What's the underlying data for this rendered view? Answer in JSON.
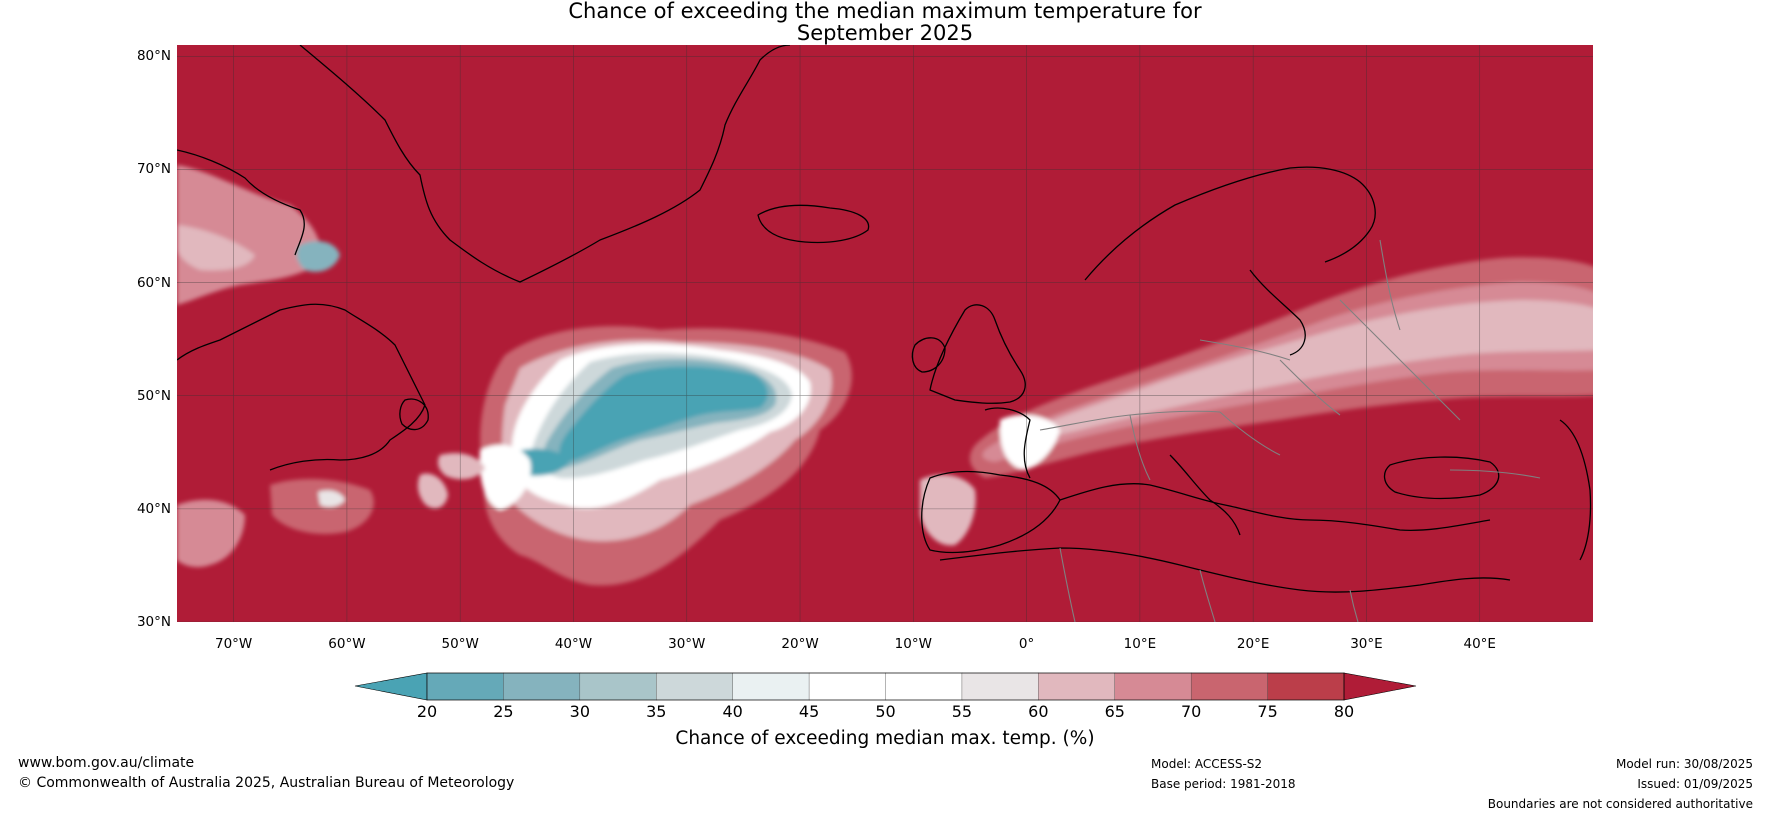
{
  "title": {
    "line1": "Chance of exceeding the median maximum temperature for",
    "line2": "September 2025"
  },
  "map": {
    "extent": {
      "lon_min": -75,
      "lon_max": 50,
      "lat_min": 30,
      "lat_max": 81
    },
    "grid_on": true,
    "lat_ticks": [
      {
        "value": 80,
        "label": "80°N"
      },
      {
        "value": 70,
        "label": "70°N"
      },
      {
        "value": 60,
        "label": "60°N"
      },
      {
        "value": 50,
        "label": "50°N"
      },
      {
        "value": 40,
        "label": "40°N"
      },
      {
        "value": 30,
        "label": "30°N"
      }
    ],
    "lon_ticks": [
      {
        "value": -70,
        "label": "70°W"
      },
      {
        "value": -60,
        "label": "60°W"
      },
      {
        "value": -50,
        "label": "50°W"
      },
      {
        "value": -40,
        "label": "40°W"
      },
      {
        "value": -30,
        "label": "30°W"
      },
      {
        "value": -20,
        "label": "20°W"
      },
      {
        "value": -10,
        "label": "10°W"
      },
      {
        "value": 0,
        "label": "0°"
      },
      {
        "value": 10,
        "label": "10°E"
      },
      {
        "value": 20,
        "label": "20°E"
      },
      {
        "value": 30,
        "label": "30°E"
      },
      {
        "value": 40,
        "label": "40°E"
      }
    ],
    "background_percent": 80,
    "colors": {
      "above_80": "#b01c37",
      "coast": "#000000",
      "borders": "#808080",
      "grid": "#333333"
    }
  },
  "colorbar": {
    "ticks": [
      "20",
      "25",
      "30",
      "35",
      "40",
      "45",
      "50",
      "55",
      "60",
      "65",
      "70",
      "75",
      "80"
    ],
    "colors": {
      "below_20": "#4aa3b4",
      "20-25": "#65a9b8",
      "25-30": "#85b3be",
      "30-35": "#a9c5c9",
      "35-40": "#cdd8da",
      "40-45": "#eaf1f2",
      "45-50": "#ffffff",
      "50-55": "#ffffff",
      "55-60": "#e9e5e6",
      "60-65": "#e1b8be",
      "65-70": "#d68a95",
      "70-75": "#c9656f",
      "75-80": "#bb3e4a",
      "above_80": "#b01c37"
    },
    "label": "Chance of exceeding median max. temp. (%)"
  },
  "footer": {
    "website": "www.bom.gov.au/climate",
    "copyright": "© Commonwealth of Australia 2025, Australian Bureau of Meteorology",
    "model": "Model: ACCESS-S2",
    "base_period": "Base period: 1981-2018",
    "model_run": "Model run: 30/08/2025",
    "issued": "Issued: 01/09/2025",
    "disclaimer": "Boundaries are not considered authoritative"
  }
}
